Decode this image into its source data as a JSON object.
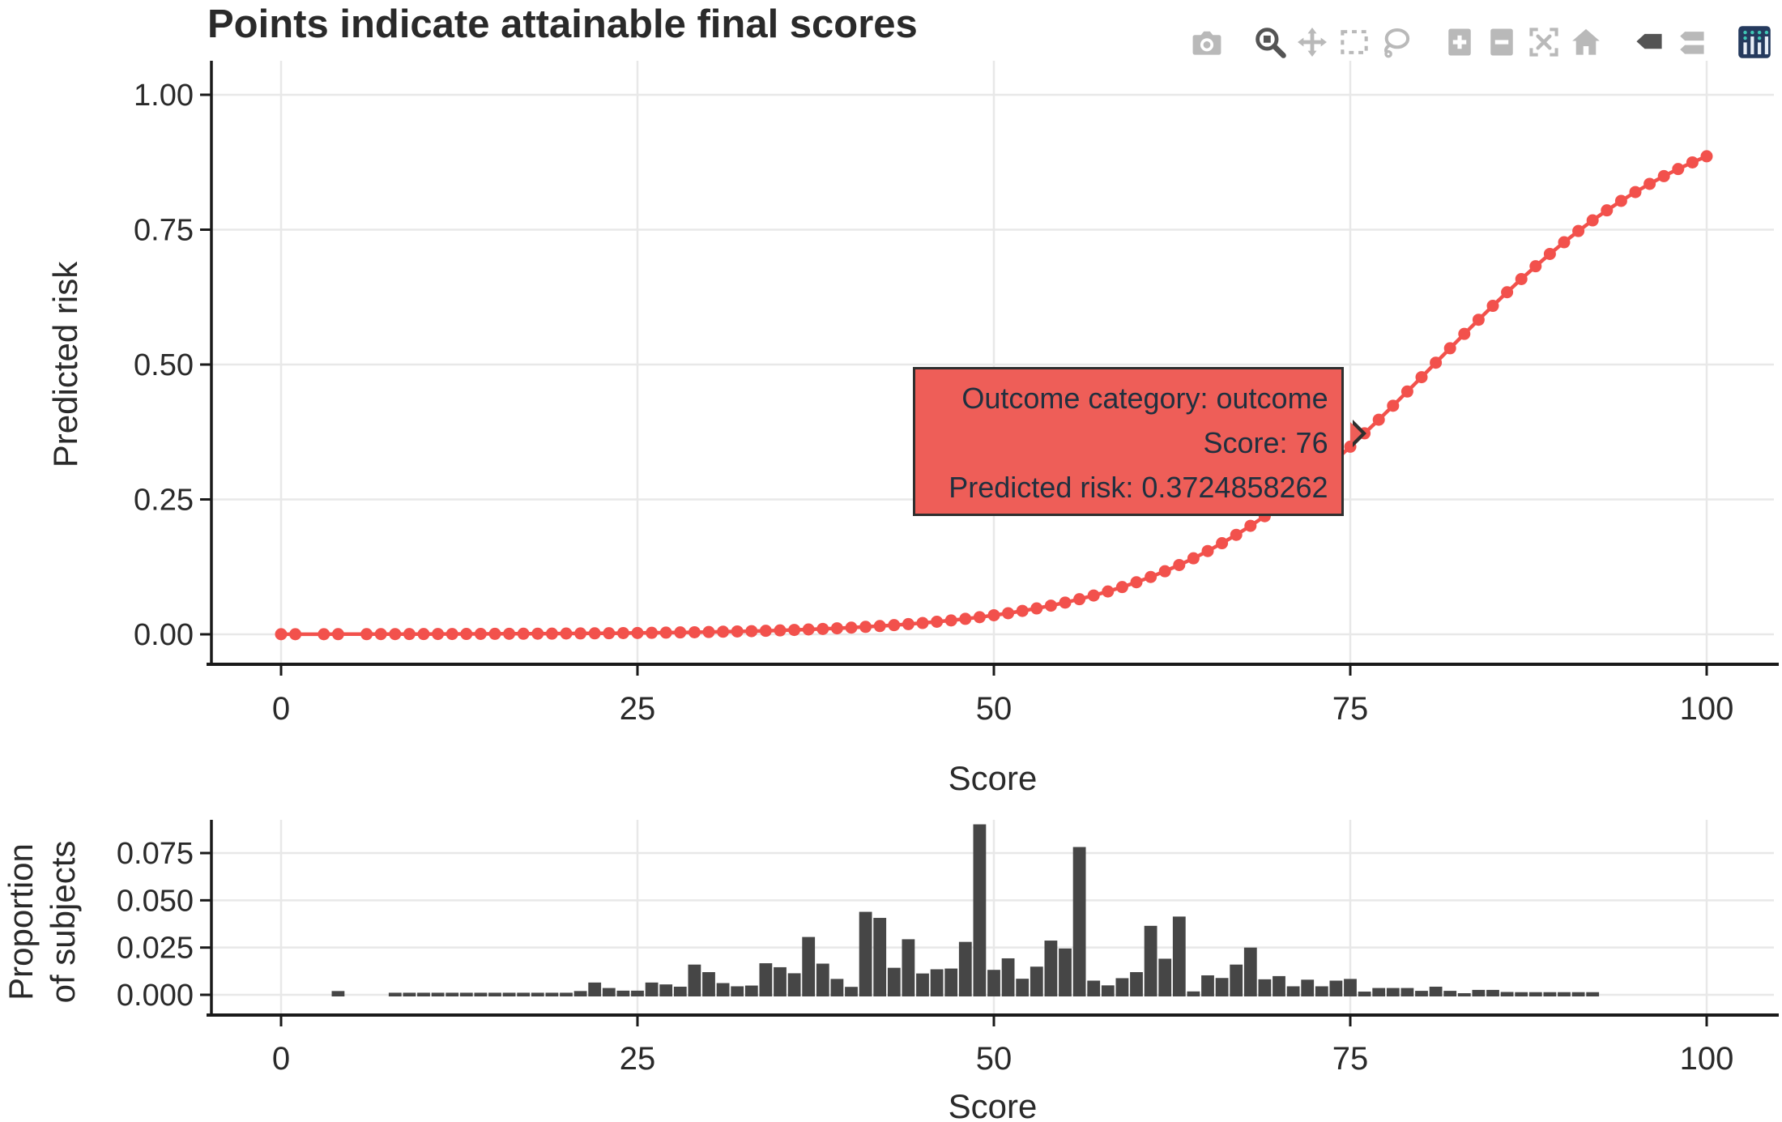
{
  "title": "Points indicate attainable final scores",
  "colors": {
    "curve": "#f2514c",
    "tooltip_bg": "#ee5e58",
    "tooltip_border": "#2f2f2f",
    "bar": "#464646",
    "grid": "#e8e8e8",
    "axis": "#1a1a1a",
    "tick_text": "#2a2a2a",
    "modebar_inactive": "#b9b9b9",
    "modebar_active": "#545454",
    "logo_navy": "#253a5e",
    "logo_teal": "#3ec6b4",
    "logo_bars": "#e8eef7"
  },
  "modebar": {
    "groups": [
      [
        "camera"
      ],
      [
        "zoom",
        "pan",
        "box-select",
        "lasso-select"
      ],
      [
        "zoom-in",
        "zoom-out",
        "autoscale",
        "home"
      ],
      [
        "hover-closest",
        "hover-compare"
      ],
      [
        "plotly-logo"
      ]
    ],
    "active": [
      "zoom",
      "hover-closest"
    ]
  },
  "tooltip": {
    "lines": [
      "Outcome category: outcome",
      "Score: 76",
      "Predicted risk: 0.3724858262"
    ],
    "score": 76,
    "risk": 0.3724858262
  },
  "chart_data": [
    {
      "type": "line",
      "name": "predicted-risk-curve",
      "title": "Points indicate attainable final scores",
      "xlabel": "Score",
      "ylabel": "Predicted risk",
      "xlim": [
        -5,
        105
      ],
      "ylim": [
        0,
        1.0
      ],
      "grid": true,
      "marker_gap_scores": [
        2,
        5
      ],
      "xticks": {
        "values": [
          0,
          25,
          50,
          75,
          100
        ],
        "labels": [
          "0",
          "25",
          "50",
          "75",
          "100"
        ]
      },
      "yticks": {
        "values": [
          0,
          0.25,
          0.5,
          0.75,
          1.0
        ],
        "labels": [
          "0.00",
          "0.25",
          "0.50",
          "0.75",
          "1.00"
        ]
      },
      "x": [
        0,
        1,
        2,
        3,
        4,
        5,
        6,
        7,
        8,
        9,
        10,
        11,
        12,
        13,
        14,
        15,
        16,
        17,
        18,
        19,
        20,
        21,
        22,
        23,
        24,
        25,
        26,
        27,
        28,
        29,
        30,
        31,
        32,
        33,
        34,
        35,
        36,
        37,
        38,
        39,
        40,
        41,
        42,
        43,
        44,
        45,
        46,
        47,
        48,
        49,
        50,
        51,
        52,
        53,
        54,
        55,
        56,
        57,
        58,
        59,
        60,
        61,
        62,
        63,
        64,
        65,
        66,
        67,
        68,
        69,
        70,
        71,
        72,
        73,
        74,
        75,
        76,
        77,
        78,
        79,
        80,
        81,
        82,
        83,
        84,
        85,
        86,
        87,
        88,
        89,
        90,
        91,
        92,
        93,
        94,
        95,
        96,
        97,
        98,
        99,
        100
      ],
      "y": [
        0.0002,
        0.0002,
        0.0002,
        0.0002,
        0.0003,
        0.0003,
        0.0003,
        0.0004,
        0.0004,
        0.0005,
        0.0005,
        0.0006,
        0.0006,
        0.0007,
        0.0008,
        0.0009,
        0.001,
        0.0011,
        0.0012,
        0.0013,
        0.0015,
        0.0016,
        0.0018,
        0.002,
        0.0023,
        0.0025,
        0.0028,
        0.0031,
        0.0035,
        0.0038,
        0.0043,
        0.0048,
        0.0053,
        0.0059,
        0.0065,
        0.0073,
        0.0081,
        0.009,
        0.01,
        0.0111,
        0.0124,
        0.0138,
        0.0153,
        0.017,
        0.0189,
        0.021,
        0.0233,
        0.0258,
        0.0287,
        0.0318,
        0.0353,
        0.0391,
        0.0434,
        0.048,
        0.0532,
        0.0588,
        0.0651,
        0.0719,
        0.0794,
        0.0876,
        0.0965,
        0.1063,
        0.1169,
        0.1284,
        0.1409,
        0.1543,
        0.1689,
        0.1844,
        0.2011,
        0.2189,
        0.2378,
        0.2577,
        0.2787,
        0.3008,
        0.3237,
        0.3477,
        0.3724858262,
        0.3978,
        0.4237,
        0.45,
        0.4766,
        0.5034,
        0.5302,
        0.5568,
        0.583,
        0.6088,
        0.634,
        0.6585,
        0.6822,
        0.705,
        0.7267,
        0.7475,
        0.7672,
        0.7858,
        0.8033,
        0.8197,
        0.8349,
        0.8492,
        0.8624,
        0.8747,
        0.886
      ]
    },
    {
      "type": "bar",
      "name": "score-histogram",
      "xlabel": "Score",
      "ylabel": "Proportion of subjects",
      "ylabel_lines": [
        "Proportion",
        "of subjects"
      ],
      "xlim": [
        -5,
        105
      ],
      "ylim": [
        0,
        0.09
      ],
      "grid": true,
      "xticks": {
        "values": [
          0,
          25,
          50,
          75,
          100
        ],
        "labels": [
          "0",
          "25",
          "50",
          "75",
          "100"
        ]
      },
      "yticks": {
        "values": [
          0,
          0.025,
          0.05,
          0.075
        ],
        "labels": [
          "0.000",
          "0.025",
          "0.050",
          "0.075"
        ]
      },
      "x": [
        4,
        8,
        9,
        10,
        11,
        12,
        13,
        14,
        15,
        16,
        17,
        18,
        19,
        20,
        21,
        22,
        23,
        24,
        25,
        26,
        27,
        28,
        29,
        30,
        31,
        32,
        33,
        34,
        35,
        36,
        37,
        38,
        39,
        40,
        41,
        42,
        43,
        44,
        45,
        46,
        47,
        48,
        49,
        50,
        51,
        52,
        53,
        54,
        55,
        56,
        57,
        58,
        59,
        60,
        61,
        62,
        63,
        64,
        65,
        66,
        67,
        68,
        69,
        70,
        71,
        72,
        73,
        74,
        75,
        76,
        77,
        78,
        79,
        80,
        81,
        82,
        83,
        84,
        85,
        86,
        87,
        88,
        89,
        90,
        91,
        92
      ],
      "values": [
        0.002,
        0.0011,
        0.0011,
        0.0011,
        0.0011,
        0.0011,
        0.0011,
        0.0011,
        0.0011,
        0.0011,
        0.0011,
        0.0011,
        0.0011,
        0.0011,
        0.002,
        0.0065,
        0.0036,
        0.0022,
        0.0022,
        0.0065,
        0.0055,
        0.0043,
        0.016,
        0.012,
        0.0062,
        0.0045,
        0.0049,
        0.0167,
        0.0146,
        0.0114,
        0.0306,
        0.0165,
        0.0084,
        0.0042,
        0.0439,
        0.0407,
        0.0143,
        0.0294,
        0.0113,
        0.0135,
        0.0139,
        0.028,
        0.0902,
        0.0132,
        0.0193,
        0.0085,
        0.0149,
        0.0287,
        0.0245,
        0.0782,
        0.0075,
        0.005,
        0.0088,
        0.012,
        0.0365,
        0.0191,
        0.0414,
        0.0018,
        0.0103,
        0.0089,
        0.016,
        0.025,
        0.0082,
        0.0099,
        0.0045,
        0.008,
        0.0045,
        0.0075,
        0.0084,
        0.0017,
        0.0036,
        0.0036,
        0.0036,
        0.0021,
        0.0043,
        0.0021,
        0.0007,
        0.0026,
        0.0026,
        0.0015,
        0.0014,
        0.0014,
        0.0014,
        0.0014,
        0.0014,
        0.0014
      ]
    }
  ]
}
